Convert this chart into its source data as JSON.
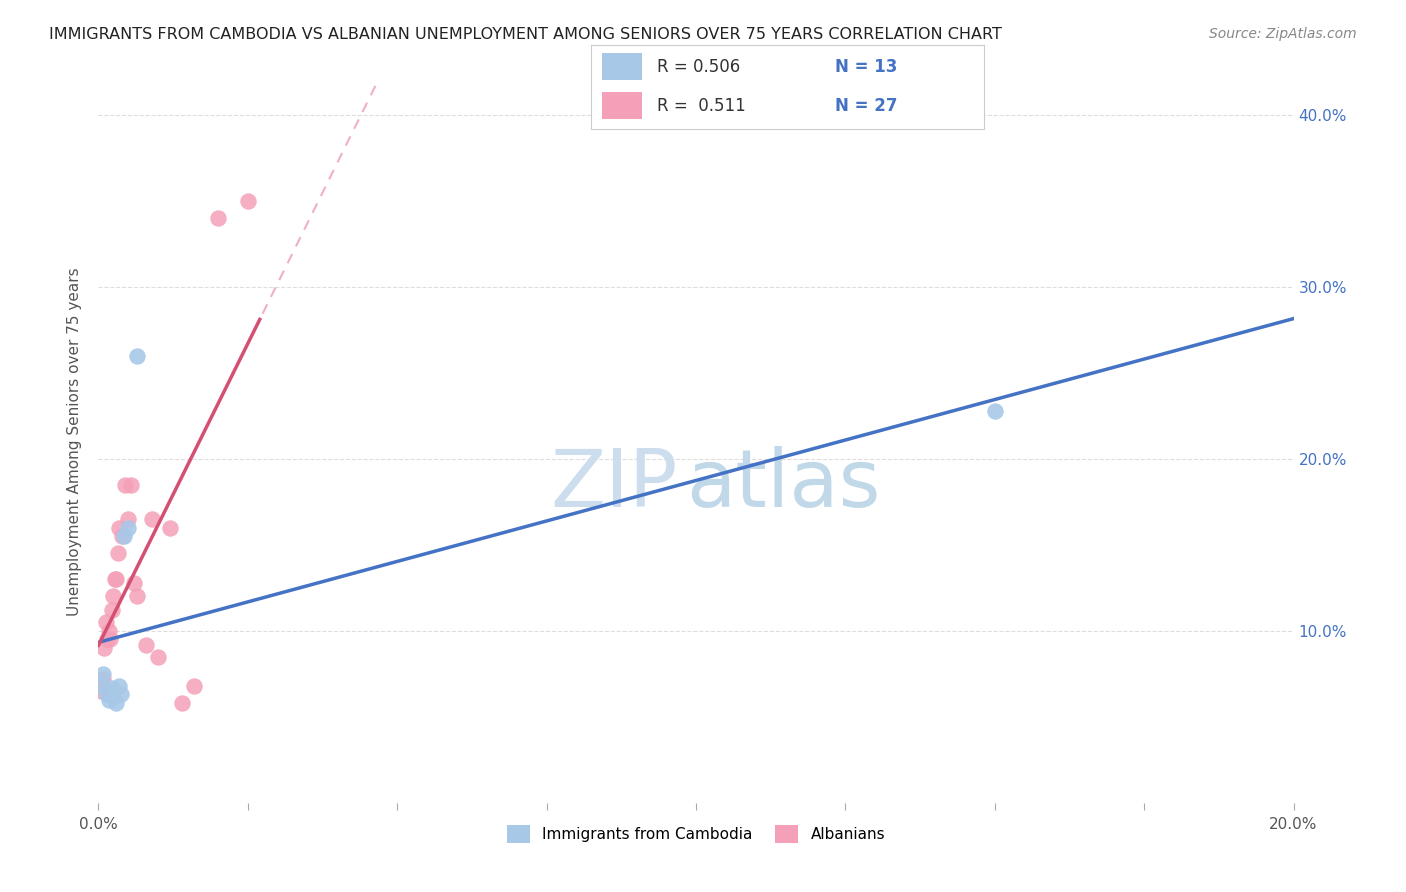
{
  "title": "IMMIGRANTS FROM CAMBODIA VS ALBANIAN UNEMPLOYMENT AMONG SENIORS OVER 75 YEARS CORRELATION CHART",
  "source": "Source: ZipAtlas.com",
  "ylabel": "Unemployment Among Seniors over 75 years",
  "xlim": [
    0.0,
    0.2
  ],
  "ylim": [
    0.0,
    0.42
  ],
  "xtick_positions": [
    0.0,
    0.025,
    0.05,
    0.075,
    0.1,
    0.125,
    0.15,
    0.175,
    0.2
  ],
  "xticklabels": [
    "0.0%",
    "",
    "",
    "",
    "",
    "",
    "",
    "",
    "20.0%"
  ],
  "ytick_positions": [
    0.0,
    0.1,
    0.2,
    0.3,
    0.4
  ],
  "yticklabels_right": [
    "",
    "10.0%",
    "20.0%",
    "30.0%",
    "40.0%"
  ],
  "blue_color": "#a8c8e8",
  "pink_color": "#f4a0b8",
  "blue_line_color": "#4472c4",
  "pink_line_color": "#d45070",
  "pink_dash_color": "#f0b0c0",
  "legend_box_color": "#f4a0b8",
  "legend_blue_box_color": "#a8c8e8",
  "cam_x": [
    0.0008,
    0.0008,
    0.0015,
    0.0018,
    0.0022,
    0.0025,
    0.003,
    0.0035,
    0.0038,
    0.0042,
    0.005,
    0.0065,
    0.15
  ],
  "cam_y": [
    0.075,
    0.068,
    0.063,
    0.06,
    0.067,
    0.062,
    0.058,
    0.068,
    0.063,
    0.155,
    0.16,
    0.26,
    0.228
  ],
  "alb_x": [
    0.0005,
    0.0008,
    0.001,
    0.0012,
    0.0015,
    0.0018,
    0.002,
    0.0022,
    0.0025,
    0.0028,
    0.003,
    0.0032,
    0.0035,
    0.004,
    0.0045,
    0.005,
    0.0055,
    0.006,
    0.0065,
    0.008,
    0.009,
    0.01,
    0.012,
    0.014,
    0.016,
    0.02,
    0.025
  ],
  "alb_y": [
    0.065,
    0.072,
    0.09,
    0.105,
    0.095,
    0.1,
    0.095,
    0.112,
    0.12,
    0.13,
    0.13,
    0.145,
    0.16,
    0.155,
    0.185,
    0.165,
    0.185,
    0.128,
    0.12,
    0.092,
    0.165,
    0.085,
    0.16,
    0.058,
    0.068,
    0.34,
    0.35
  ],
  "watermark_zip": "ZIP",
  "watermark_atlas": "atlas",
  "title_fontsize": 11.5,
  "source_fontsize": 10,
  "tick_fontsize": 11,
  "ylabel_fontsize": 11,
  "legend_fontsize": 12
}
